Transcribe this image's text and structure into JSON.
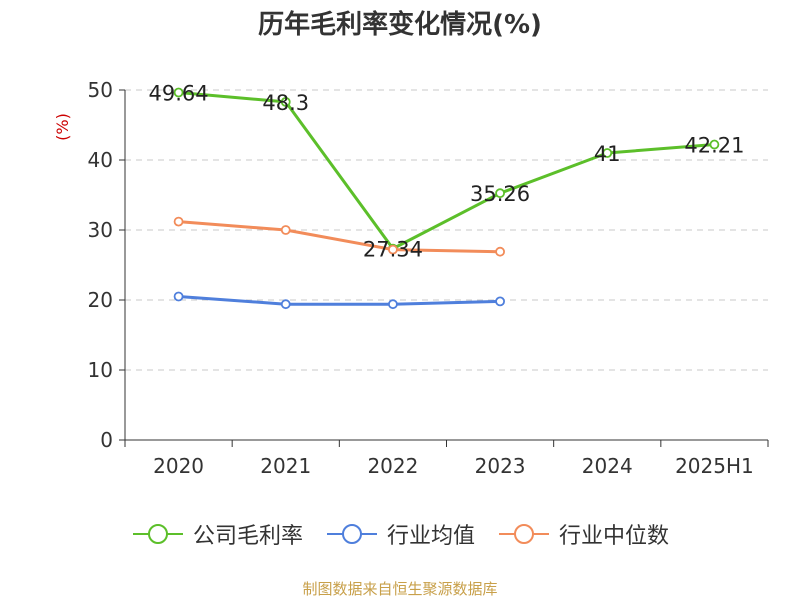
{
  "source_note": "制图数据来自恒生聚源数据库",
  "chart_data": {
    "type": "line",
    "title": "历年毛利率变化情况(%)",
    "ylabel": "(%)",
    "xlabel": "",
    "categories": [
      "2020",
      "2021",
      "2022",
      "2023",
      "2024",
      "2025H1"
    ],
    "ylim": [
      0,
      50
    ],
    "yticks": [
      0,
      10,
      20,
      30,
      40,
      50
    ],
    "grid": true,
    "legend_position": "bottom",
    "series": [
      {
        "name": "公司毛利率",
        "color": "#5cbf2a",
        "values": [
          49.64,
          48.3,
          27.34,
          35.26,
          41,
          42.21
        ],
        "labels": [
          "49.64",
          "48.3",
          "27.34",
          "35.26",
          "41",
          "42.21"
        ]
      },
      {
        "name": "行业均值",
        "color": "#4f7fdc",
        "values": [
          20.5,
          19.4,
          19.4,
          19.8,
          null,
          null
        ],
        "labels": null
      },
      {
        "name": "行业中位数",
        "color": "#f28c5a",
        "values": [
          31.2,
          30.0,
          27.2,
          26.9,
          null,
          null
        ],
        "labels": null
      }
    ]
  }
}
